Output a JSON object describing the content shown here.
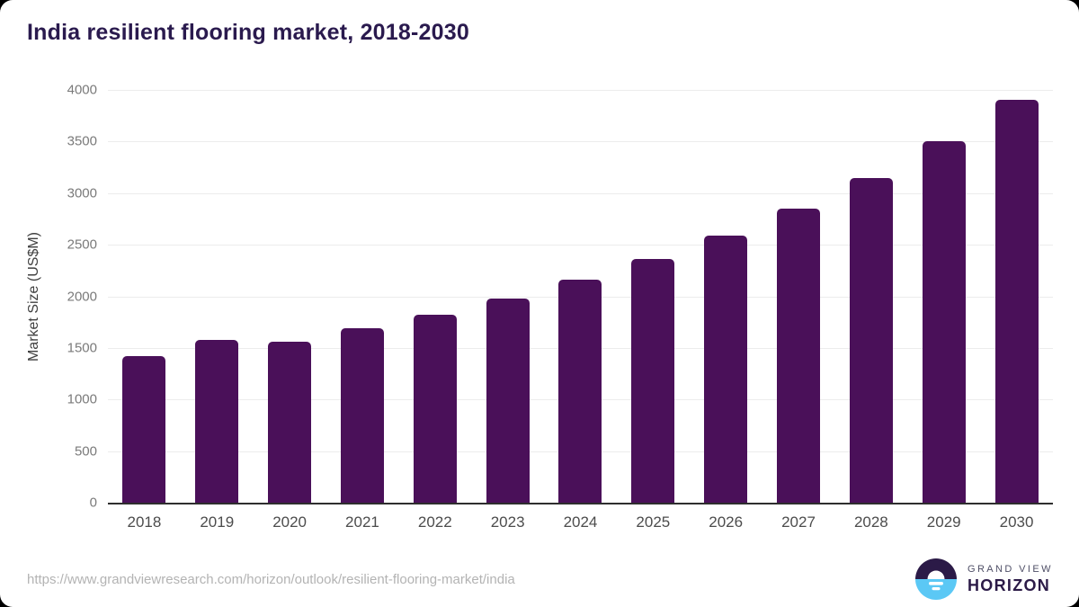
{
  "header": {
    "title": "India resilient flooring market, 2018-2030"
  },
  "chart_data": {
    "type": "bar",
    "title": "India resilient flooring market, 2018-2030",
    "categories": [
      "2018",
      "2019",
      "2020",
      "2021",
      "2022",
      "2023",
      "2024",
      "2025",
      "2026",
      "2027",
      "2028",
      "2029",
      "2030"
    ],
    "values": [
      1420,
      1580,
      1560,
      1690,
      1820,
      1980,
      2160,
      2360,
      2590,
      2850,
      3150,
      3500,
      3900
    ],
    "xlabel": "",
    "ylabel": "Market Size (US$M)",
    "ylim": [
      0,
      4000
    ],
    "yticks": [
      0,
      500,
      1000,
      1500,
      2000,
      2500,
      3000,
      3500,
      4000
    ],
    "grid": true,
    "legend": false,
    "bar_color": "#4a1059"
  },
  "footer": {
    "source_url": "https://www.grandviewresearch.com/horizon/outlook/resilient-flooring-market/india",
    "logo": {
      "top": "GRAND VIEW",
      "bottom": "HORIZON"
    }
  },
  "colors": {
    "title_text": "#2a1a4e",
    "bar": "#4a1059",
    "gridline": "#ececec",
    "axis_line": "#2e2e2e",
    "y_tick_text": "#7a7a7a",
    "x_tick_text": "#4c4c4c",
    "source_text": "#b3b3b3",
    "logo_dark": "#2b1a47",
    "logo_blue": "#5bc8f5",
    "card_background": "#ffffff",
    "page_background": "#000000"
  }
}
